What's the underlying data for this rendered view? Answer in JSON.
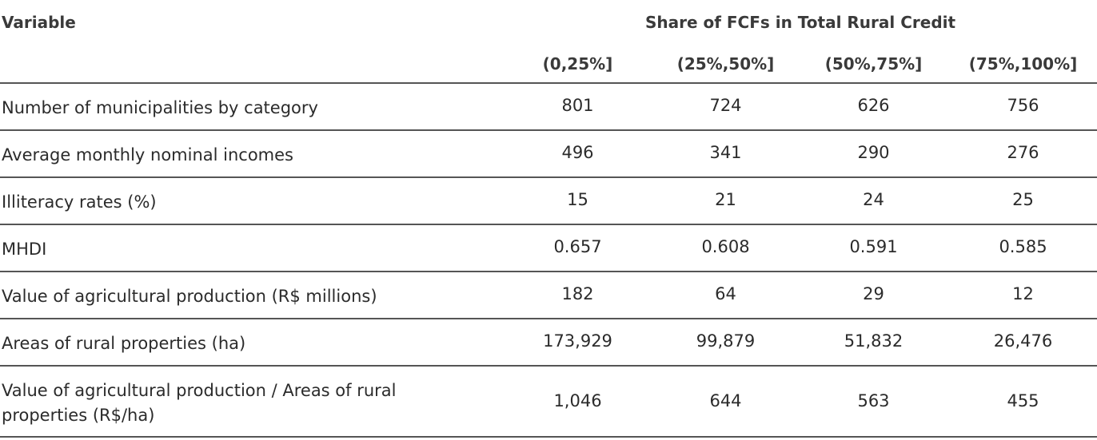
{
  "header": {
    "variable_label": "Variable",
    "group_label": "Share of FCFs in Total Rural Credit",
    "columns": [
      "(0,25%]",
      "(25%,50%]",
      "(50%,75%]",
      "(75%,100%]"
    ]
  },
  "rows": [
    {
      "label": "Number of municipalities by category",
      "values": [
        "801",
        "724",
        "626",
        "756"
      ]
    },
    {
      "label": "Average monthly nominal incomes",
      "values": [
        "496",
        "341",
        "290",
        "276"
      ]
    },
    {
      "label": "Illiteracy rates (%)",
      "values": [
        "15",
        "21",
        "24",
        "25"
      ]
    },
    {
      "label": "MHDI",
      "values": [
        "0.657",
        "0.608",
        "0.591",
        "0.585"
      ]
    },
    {
      "label": "Value of agricultural production (R$ millions)",
      "values": [
        "182",
        "64",
        "29",
        "12"
      ]
    },
    {
      "label": "Areas of rural properties (ha)",
      "values": [
        "173,929",
        "99,879",
        "51,832",
        "26,476"
      ]
    },
    {
      "label_line1": "Value of agricultural production / Areas of rural",
      "label_line2": "properties (R$/ha)",
      "values": [
        "1,046",
        "644",
        "563",
        "455"
      ]
    }
  ]
}
